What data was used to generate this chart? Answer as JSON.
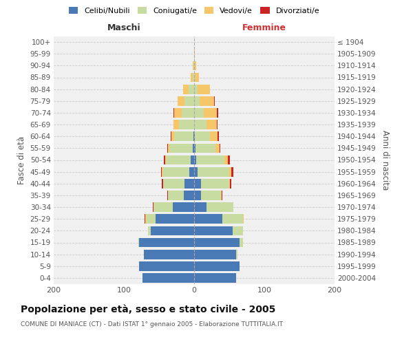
{
  "age_groups": [
    "0-4",
    "5-9",
    "10-14",
    "15-19",
    "20-24",
    "25-29",
    "30-34",
    "35-39",
    "40-44",
    "45-49",
    "50-54",
    "55-59",
    "60-64",
    "65-69",
    "70-74",
    "75-79",
    "80-84",
    "85-89",
    "90-94",
    "95-99",
    "100+"
  ],
  "birth_years": [
    "2000-2004",
    "1995-1999",
    "1990-1994",
    "1985-1989",
    "1980-1984",
    "1975-1979",
    "1970-1974",
    "1965-1969",
    "1960-1964",
    "1955-1959",
    "1950-1954",
    "1945-1949",
    "1940-1944",
    "1935-1939",
    "1930-1934",
    "1925-1929",
    "1920-1924",
    "1915-1919",
    "1910-1914",
    "1905-1909",
    "≤ 1904"
  ],
  "males": {
    "celibi": [
      74,
      78,
      72,
      78,
      62,
      55,
      30,
      15,
      14,
      7,
      5,
      2,
      1,
      0,
      0,
      0,
      0,
      0,
      0,
      0,
      0
    ],
    "coniugati": [
      0,
      0,
      0,
      1,
      4,
      14,
      28,
      22,
      30,
      38,
      35,
      33,
      27,
      22,
      18,
      14,
      8,
      2,
      1,
      0,
      0
    ],
    "vedovi": [
      0,
      0,
      0,
      0,
      0,
      1,
      0,
      0,
      0,
      1,
      1,
      2,
      4,
      7,
      10,
      10,
      8,
      3,
      1,
      0,
      0
    ],
    "divorziati": [
      0,
      0,
      0,
      0,
      0,
      1,
      1,
      1,
      2,
      1,
      2,
      1,
      1,
      0,
      1,
      0,
      0,
      0,
      0,
      0,
      0
    ]
  },
  "females": {
    "nubili": [
      60,
      65,
      60,
      65,
      55,
      40,
      18,
      10,
      10,
      5,
      3,
      2,
      1,
      0,
      0,
      0,
      0,
      0,
      0,
      0,
      0
    ],
    "coniugate": [
      0,
      0,
      2,
      5,
      15,
      30,
      38,
      28,
      40,
      45,
      40,
      28,
      22,
      18,
      14,
      8,
      5,
      1,
      0,
      0,
      0
    ],
    "vedove": [
      0,
      0,
      0,
      0,
      0,
      1,
      0,
      1,
      1,
      3,
      5,
      6,
      10,
      14,
      18,
      20,
      18,
      6,
      3,
      1,
      0
    ],
    "divorziate": [
      0,
      0,
      0,
      0,
      0,
      0,
      0,
      1,
      2,
      3,
      3,
      1,
      2,
      1,
      2,
      1,
      0,
      0,
      0,
      0,
      0
    ]
  },
  "colors": {
    "celibi_nubili": "#4a7ab5",
    "coniugati": "#c8dba0",
    "vedovi": "#f5c76a",
    "divorziati": "#cc2222"
  },
  "title": "Popolazione per età, sesso e stato civile - 2005",
  "subtitle": "COMUNE DI MANIACE (CT) - Dati ISTAT 1° gennaio 2005 - Elaborazione TUTTITALIA.IT",
  "xlabel_maschi": "Maschi",
  "xlabel_femmine": "Femmine",
  "ylabel_left": "Fasce di età",
  "ylabel_right": "Anni di nascita",
  "xlim": 200,
  "legend_labels": [
    "Celibi/Nubili",
    "Coniugati/e",
    "Vedovi/e",
    "Divorziati/e"
  ],
  "background_color": "#ffffff",
  "plot_bg_color": "#f0f0f0"
}
